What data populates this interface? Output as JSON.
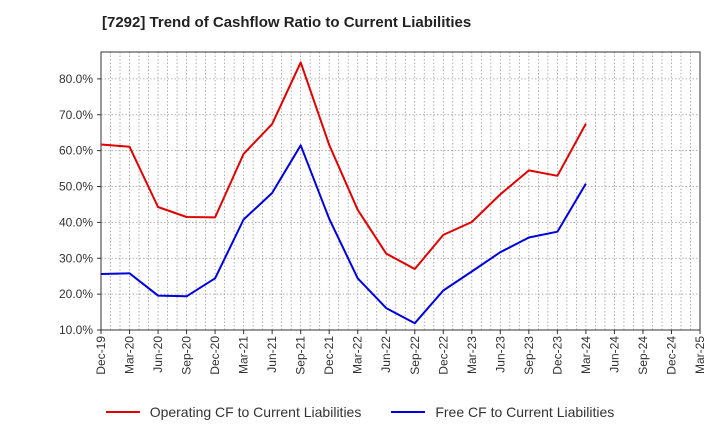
{
  "chart_data": {
    "type": "line",
    "title": "[7292]  Trend of Cashflow Ratio to Current Liabilities",
    "xlabel": "",
    "ylabel": "",
    "x": [
      "Dec-19",
      "Mar-20",
      "Jun-20",
      "Sep-20",
      "Dec-20",
      "Mar-21",
      "Jun-21",
      "Sep-21",
      "Dec-21",
      "Mar-22",
      "Jun-22",
      "Sep-22",
      "Dec-22",
      "Mar-23",
      "Jun-23",
      "Sep-23",
      "Dec-23",
      "Mar-24",
      "Jun-24",
      "Sep-24",
      "Dec-24",
      "Mar-25"
    ],
    "yticks": [
      "10.0%",
      "20.0%",
      "30.0%",
      "40.0%",
      "50.0%",
      "60.0%",
      "70.0%",
      "80.0%"
    ],
    "ylim": [
      10,
      87.5
    ],
    "grid": true,
    "legend_position": "bottom",
    "series": [
      {
        "name": "Operating CF to Current Liabilities",
        "color": "#e00000",
        "values": [
          61.7,
          61.1,
          44.3,
          41.5,
          41.4,
          59.1,
          67.4,
          84.6,
          61.6,
          43.5,
          31.3,
          27.0,
          36.5,
          40.1,
          47.8,
          54.5,
          53.0,
          67.5,
          null,
          null,
          null,
          null
        ]
      },
      {
        "name": "Free CF to Current Liabilities",
        "color": "#0000dd",
        "values": [
          25.6,
          25.8,
          19.6,
          19.4,
          24.4,
          40.8,
          48.2,
          61.5,
          41.0,
          24.4,
          16.1,
          11.9,
          21.0,
          26.3,
          31.7,
          35.8,
          37.4,
          50.8,
          null,
          null,
          null,
          null
        ]
      }
    ]
  }
}
